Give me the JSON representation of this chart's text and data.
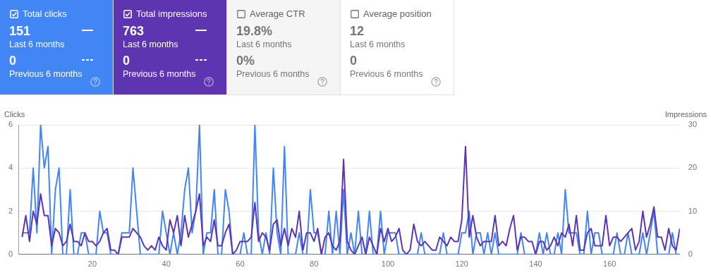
{
  "chart_data": [
    {
      "type": "other",
      "title": "Total clicks",
      "color": "#4285f4",
      "annotations": [
        "151",
        "Last 6 months",
        "0",
        "Previous 6 months"
      ]
    },
    {
      "type": "other",
      "title": "Total impressions",
      "color": "#5e35b1",
      "annotations": [
        "763",
        "Last 6 months",
        "0",
        "Previous 6 months"
      ]
    },
    {
      "type": "other",
      "title": "Average CTR",
      "color": "#f5f5f5",
      "annotations": [
        "19.8%",
        "Last 6 months",
        "0%",
        "Previous 6 months"
      ]
    },
    {
      "type": "other",
      "title": "Average position",
      "color": "#ffffff",
      "annotations": [
        "12",
        "Last 6 months",
        "0",
        "Previous 6 months"
      ]
    },
    {
      "type": "line",
      "ylabel": "Clicks",
      "y2label": "Impressions",
      "grid": "y",
      "marker": "none",
      "line_style": "solid",
      "x": [
        1,
        2,
        3,
        4,
        5,
        6,
        7,
        8,
        9,
        10,
        11,
        12,
        13,
        14,
        15,
        16,
        17,
        18,
        19,
        20,
        21,
        22,
        23,
        24,
        25,
        26,
        27,
        28,
        29,
        30,
        31,
        32,
        33,
        34,
        35,
        36,
        37,
        38,
        39,
        40,
        41,
        42,
        43,
        44,
        45,
        46,
        47,
        48,
        49,
        50,
        51,
        52,
        53,
        54,
        55,
        56,
        57,
        58,
        59,
        60,
        61,
        62,
        63,
        64,
        65,
        66,
        67,
        68,
        69,
        70,
        71,
        72,
        73,
        74,
        75,
        76,
        77,
        78,
        79,
        80,
        81,
        82,
        83,
        84,
        85,
        86,
        87,
        88,
        89,
        90,
        91,
        92,
        93,
        94,
        95,
        96,
        97,
        98,
        99,
        100,
        101,
        102,
        103,
        104,
        105,
        106,
        107,
        108,
        109,
        110,
        111,
        112,
        113,
        114,
        115,
        116,
        117,
        118,
        119,
        120,
        121,
        122,
        123,
        124,
        125,
        126,
        127,
        128,
        129,
        130,
        131,
        132,
        133,
        134,
        135,
        136,
        137,
        138,
        139,
        140,
        141,
        142,
        143,
        144,
        145,
        146,
        147,
        148,
        149,
        150,
        151,
        152,
        153,
        154,
        155,
        156,
        157,
        158,
        159,
        160,
        161,
        162,
        163,
        164,
        165,
        166,
        167,
        168,
        169,
        170,
        171,
        172,
        173,
        174,
        175,
        176,
        177,
        178,
        179
      ],
      "xlim": [
        0,
        179
      ],
      "xticks": [
        20,
        40,
        60,
        80,
        100,
        120,
        140,
        160
      ],
      "ylim": [
        0,
        6
      ],
      "yticks": [
        0,
        2,
        4,
        6
      ],
      "y2lim": [
        0,
        30
      ],
      "y2ticks": [
        0,
        10,
        20,
        30
      ],
      "series": [
        {
          "color": "#5e35b1",
          "axis": "y2",
          "values": [
            4,
            9,
            3,
            10,
            7,
            14,
            9,
            9,
            2,
            6,
            5,
            2,
            3,
            7,
            3,
            3,
            2,
            5,
            3,
            3,
            2,
            3,
            5,
            6,
            1,
            1,
            0,
            4,
            4,
            4,
            6,
            5,
            4,
            2,
            1,
            2,
            1,
            4,
            2,
            1,
            8,
            5,
            9,
            2,
            9,
            4,
            7,
            10,
            14,
            2,
            4,
            3,
            8,
            2,
            2,
            5,
            7,
            0,
            1,
            3,
            3,
            3,
            4,
            12,
            3,
            5,
            4,
            1,
            7,
            8,
            2,
            6,
            2,
            6,
            4,
            10,
            1,
            5,
            5,
            3,
            6,
            0,
            4,
            5,
            2,
            1,
            3,
            22,
            3,
            1,
            0,
            2,
            4,
            0,
            4,
            2,
            0,
            6,
            3,
            6,
            3,
            4,
            6,
            1,
            0,
            1,
            7,
            3,
            2,
            3,
            2,
            1,
            1,
            4,
            3,
            2,
            4,
            3,
            3,
            8,
            25,
            4,
            9,
            4,
            2,
            3,
            3,
            3,
            9,
            2,
            3,
            2,
            6,
            9,
            1,
            4,
            4,
            3,
            3,
            0,
            3,
            3,
            1,
            2,
            4,
            2,
            5,
            4,
            7,
            2,
            9,
            1,
            1,
            5,
            6,
            2,
            2,
            2,
            9,
            2,
            4,
            4,
            3,
            4,
            5,
            6,
            1,
            3,
            10,
            4,
            7,
            11,
            4,
            4,
            1,
            6,
            2,
            1,
            6
          ]
        },
        {
          "color": "#4285f4",
          "axis": "y",
          "values": [
            1,
            1,
            1,
            4,
            1,
            6,
            4,
            5,
            0,
            3,
            4,
            0,
            0,
            3,
            0,
            0,
            1,
            1,
            0,
            0,
            0,
            2,
            1,
            1,
            0,
            0,
            0,
            1,
            1,
            1,
            4,
            2,
            0,
            0,
            0,
            0,
            0,
            0,
            2,
            1,
            0,
            1,
            0,
            1,
            3,
            4,
            1,
            2,
            6,
            0,
            1,
            1,
            3,
            0,
            0,
            3,
            2,
            0,
            0,
            0,
            1,
            0,
            0,
            6,
            1,
            0,
            1,
            0,
            4,
            1,
            0,
            5,
            0,
            0,
            0,
            1,
            0,
            0,
            3,
            1,
            1,
            0,
            0,
            2,
            0,
            2,
            0,
            3,
            0,
            1,
            0,
            2,
            0,
            0,
            2,
            0,
            0,
            2,
            0,
            1,
            1,
            1,
            0,
            0,
            0,
            0,
            0,
            0,
            1,
            0,
            0,
            0,
            0,
            0,
            1,
            0,
            0,
            0,
            0,
            1,
            1,
            2,
            0,
            1,
            1,
            0,
            1,
            0,
            1,
            0,
            0,
            0,
            0,
            0,
            0,
            1,
            0,
            0,
            0,
            0,
            1,
            0,
            1,
            0,
            0,
            1,
            0,
            3,
            1,
            1,
            1,
            0,
            0,
            2,
            0,
            1,
            1,
            0,
            0,
            0,
            0,
            1,
            0,
            0,
            1,
            0,
            0,
            0,
            1,
            0,
            1,
            2,
            0,
            0,
            0,
            0,
            1,
            0,
            0
          ]
        }
      ]
    }
  ]
}
